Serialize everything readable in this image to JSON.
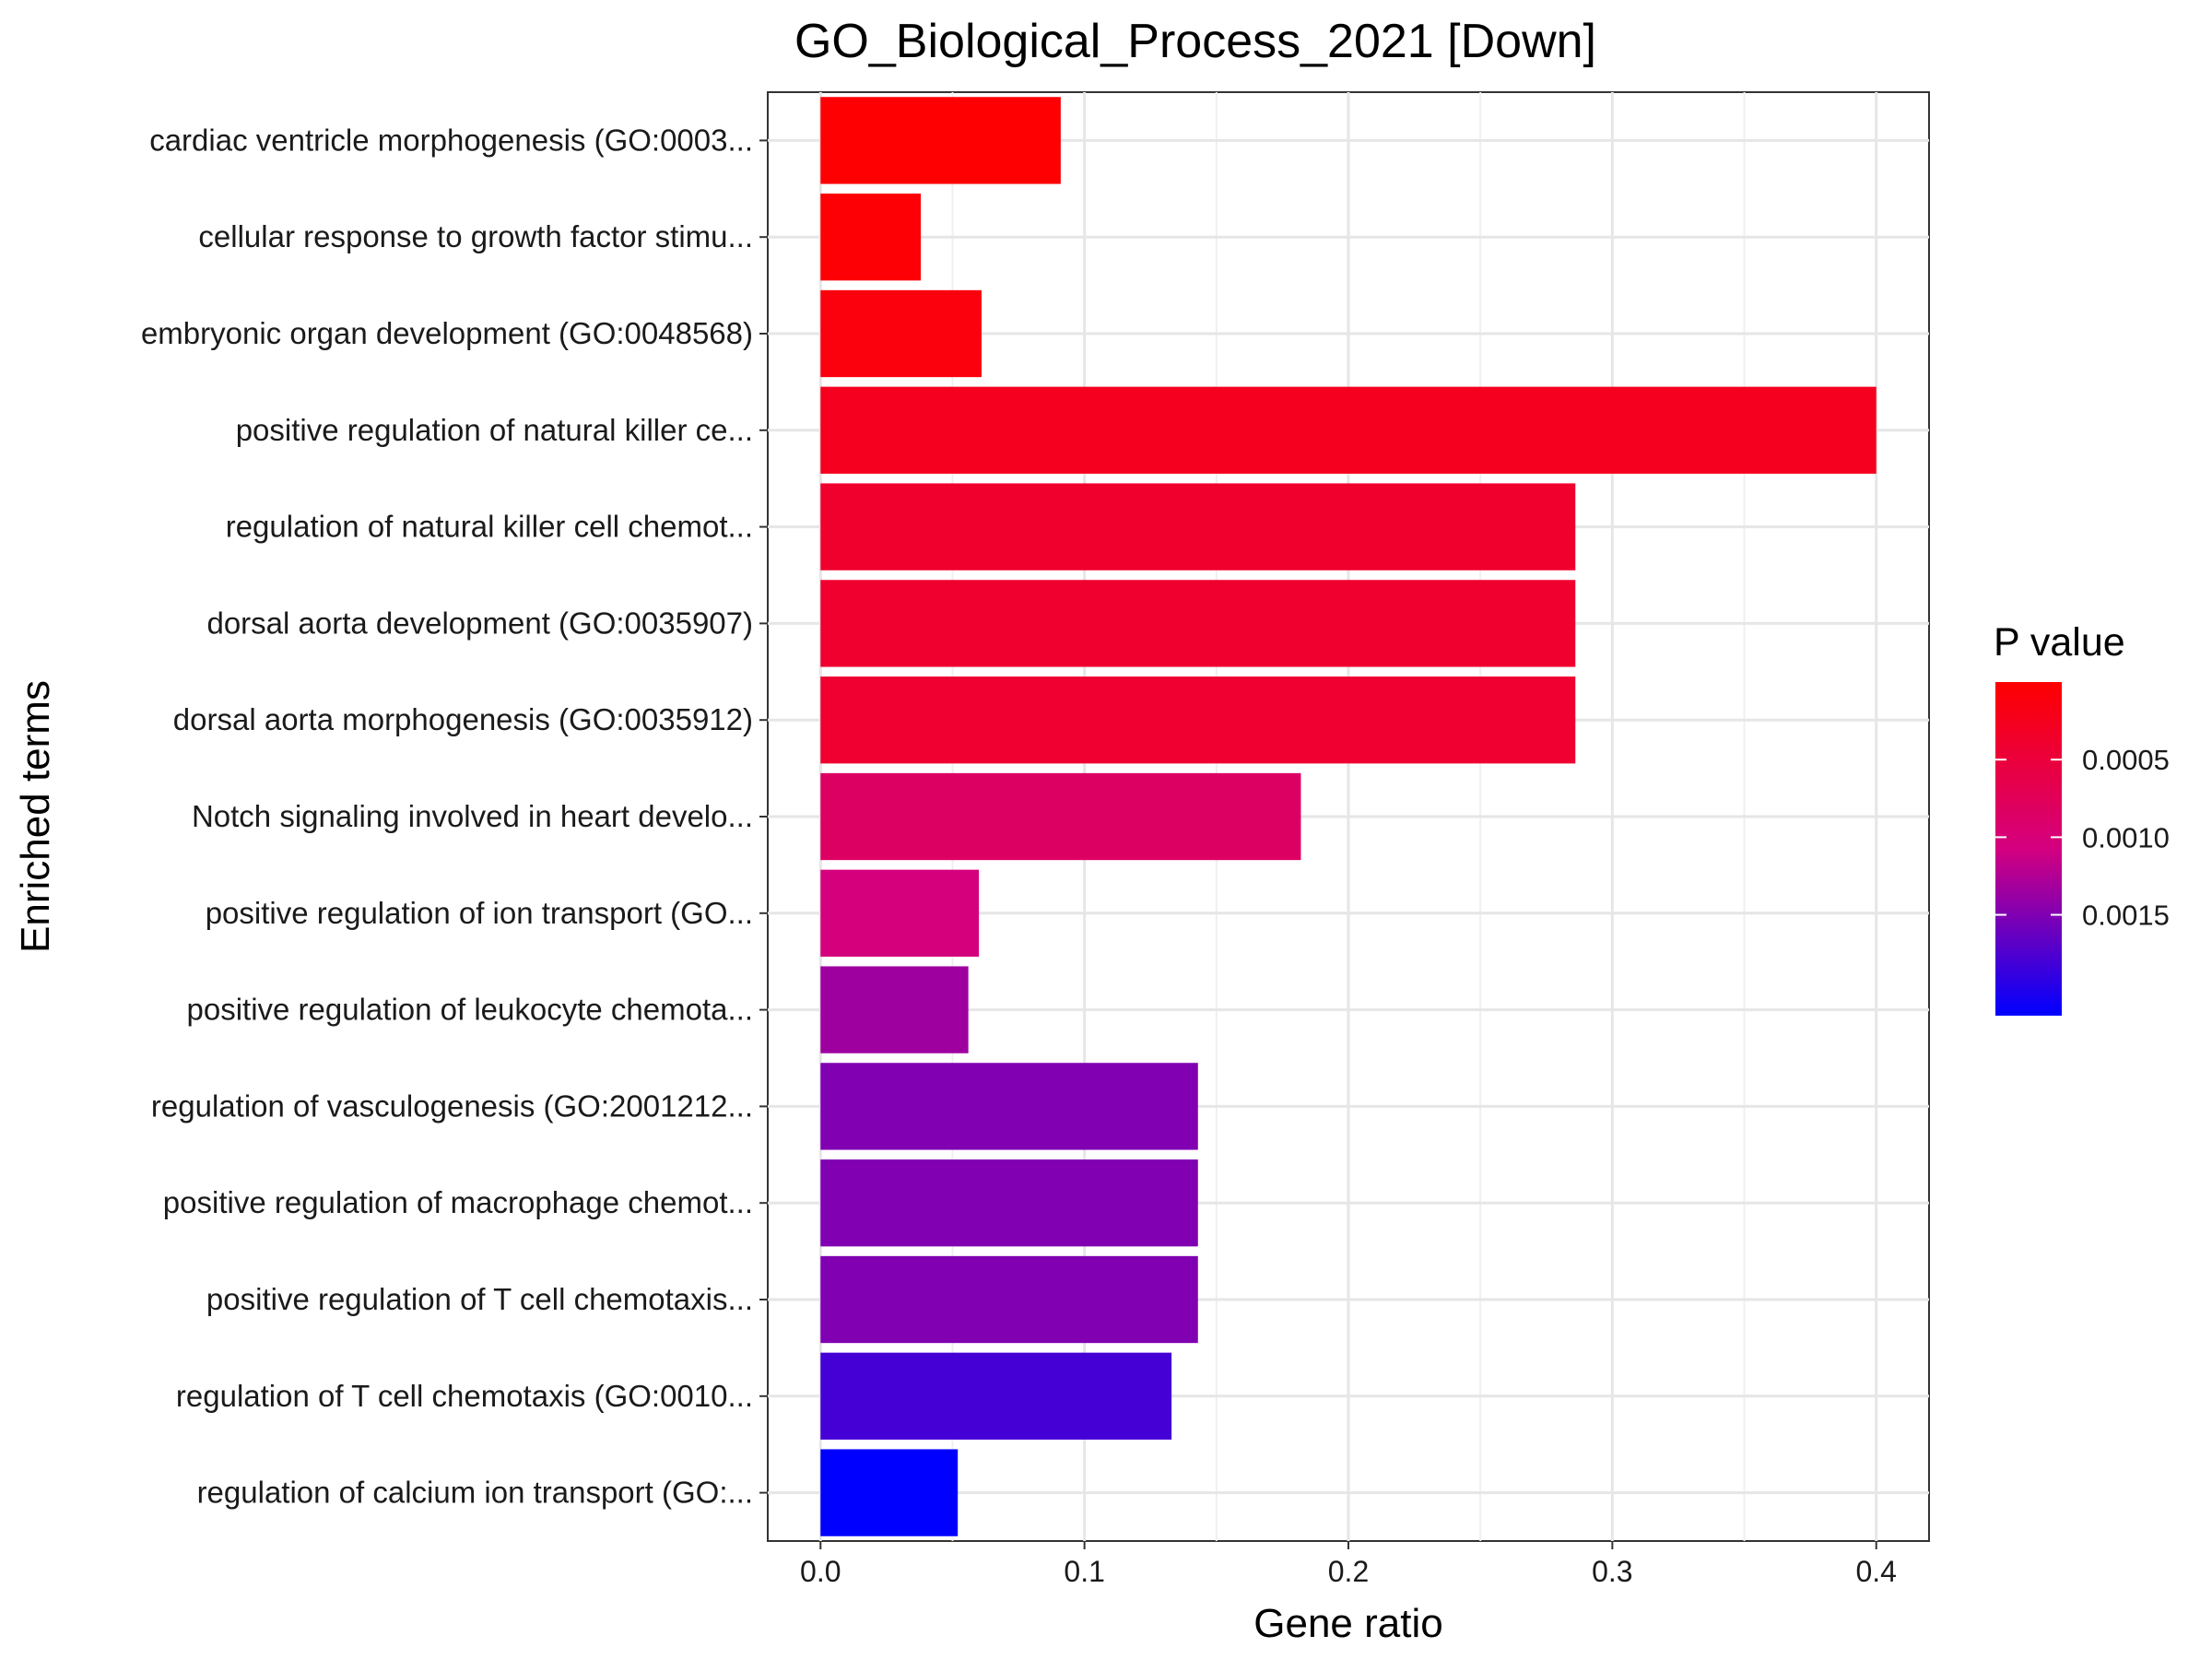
{
  "chart_data": {
    "type": "bar",
    "orientation": "horizontal",
    "title": "GO_Biological_Process_2021 [Down]",
    "xlabel": "Gene ratio",
    "ylabel": "Enriched terms",
    "xlim": [
      -0.02,
      0.42
    ],
    "xticks": [
      0.0,
      0.1,
      0.2,
      0.3,
      0.4
    ],
    "xtick_labels": [
      "0.0",
      "0.1",
      "0.2",
      "0.3",
      "0.4"
    ],
    "grid": true,
    "legend_position": "right",
    "categories": [
      "cardiac ventricle morphogenesis (GO:0003...",
      "cellular response to growth factor stimu...",
      "embryonic organ development (GO:0048568)",
      "positive regulation of natural killer ce...",
      "regulation of natural killer cell chemot...",
      "dorsal aorta development (GO:0035907)",
      "dorsal aorta morphogenesis (GO:0035912)",
      "Notch signaling involved in heart develo...",
      "positive regulation of ion transport (GO...",
      "positive regulation of leukocyte chemota...",
      "regulation of vasculogenesis (GO:2001212...",
      "positive regulation of macrophage chemot...",
      "positive regulation of T cell chemotaxis...",
      "regulation of T cell chemotaxis (GO:0010...",
      "regulation of calcium ion transport (GO:..."
    ],
    "values": [
      0.091,
      0.038,
      0.061,
      0.4,
      0.286,
      0.286,
      0.286,
      0.182,
      0.06,
      0.056,
      0.143,
      0.143,
      0.143,
      0.133,
      0.052
    ],
    "p_values": [
      2e-05,
      4e-05,
      0.00011,
      0.00025,
      0.00038,
      0.0004,
      0.00041,
      0.00084,
      0.00105,
      0.00135,
      0.0015,
      0.0015,
      0.0015,
      0.0018,
      0.00215
    ],
    "colorbar": {
      "title": "P value",
      "ticks": [
        0.0005,
        0.001,
        0.0015
      ],
      "tick_labels": [
        "0.0005",
        "0.0010",
        "0.0015"
      ],
      "range": [
        0.0,
        0.00215
      ],
      "low_color": "#ff0000",
      "high_color": "#0000ff"
    }
  }
}
